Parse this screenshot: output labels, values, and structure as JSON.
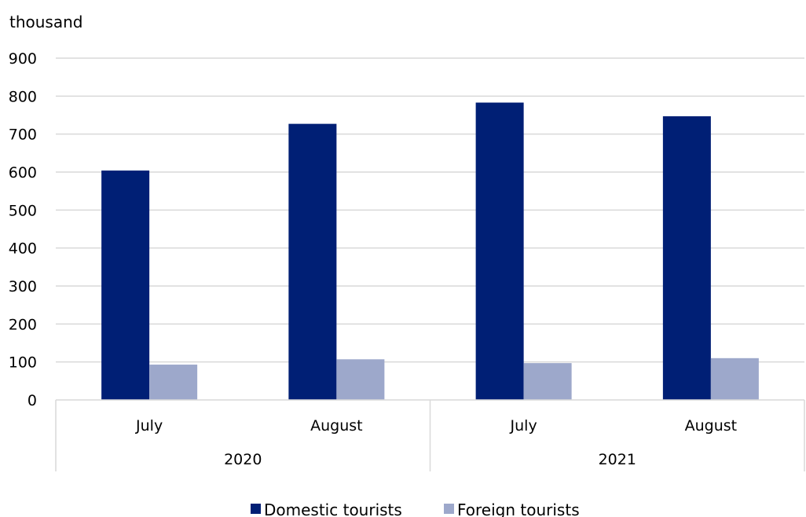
{
  "chart_data": {
    "type": "bar",
    "unit_label": "thousand",
    "ylim": [
      0,
      900
    ],
    "yticks": [
      0,
      100,
      200,
      300,
      400,
      500,
      600,
      700,
      800,
      900
    ],
    "grid": true,
    "legend_position": "bottom",
    "categories": [
      "July",
      "August",
      "July",
      "August"
    ],
    "groups": [
      {
        "label": "2020",
        "categories": [
          "July",
          "August"
        ]
      },
      {
        "label": "2021",
        "categories": [
          "July",
          "August"
        ]
      }
    ],
    "series": [
      {
        "name": "Domestic tourists",
        "color": "#001F75",
        "values": [
          604,
          727,
          783,
          747
        ]
      },
      {
        "name": "Foreign tourists",
        "color": "#9DA8CB",
        "values": [
          93,
          107,
          97,
          110
        ]
      }
    ]
  }
}
